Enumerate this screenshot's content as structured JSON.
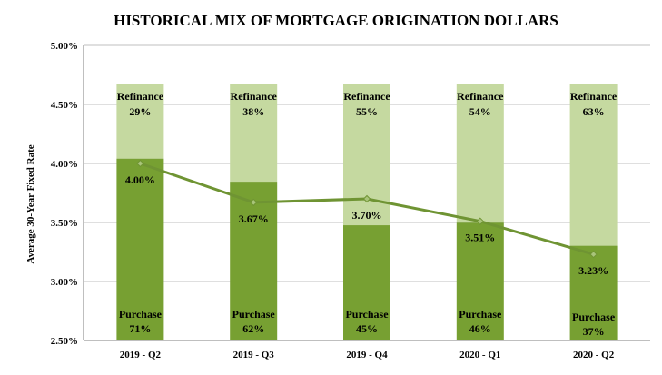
{
  "chart_data": {
    "type": "bar",
    "title": "HISTORICAL MIX OF MORTGAGE ORIGINATION DOLLARS",
    "ylabel": "Average 30-Year Fixed Rate",
    "categories": [
      "2019 - Q2",
      "2019 - Q3",
      "2019 - Q4",
      "2020 - Q1",
      "2020 - Q2"
    ],
    "y_ticks": [
      "5.00%",
      "4.50%",
      "4.00%",
      "3.50%",
      "3.00%",
      "2.50%"
    ],
    "ylim": [
      2.5,
      5.0
    ],
    "grid": true,
    "stack_labels": {
      "bottom": "Purchase",
      "top": "Refinance"
    },
    "series": [
      {
        "name": "Purchase",
        "values": [
          71,
          62,
          45,
          46,
          37
        ],
        "labels": [
          "71%",
          "62%",
          "45%",
          "46%",
          "37%"
        ],
        "color": "#77a032"
      },
      {
        "name": "Refinance",
        "values": [
          29,
          38,
          55,
          54,
          63
        ],
        "labels": [
          "29%",
          "38%",
          "55%",
          "54%",
          "63%"
        ],
        "color": "#c5d9a0"
      }
    ],
    "line": {
      "values": [
        4.0,
        3.67,
        3.7,
        3.51,
        3.23
      ],
      "labels": [
        "4.00%",
        "3.67%",
        "3.70%",
        "3.51%",
        "3.23%"
      ],
      "color": "#6f9433"
    }
  }
}
